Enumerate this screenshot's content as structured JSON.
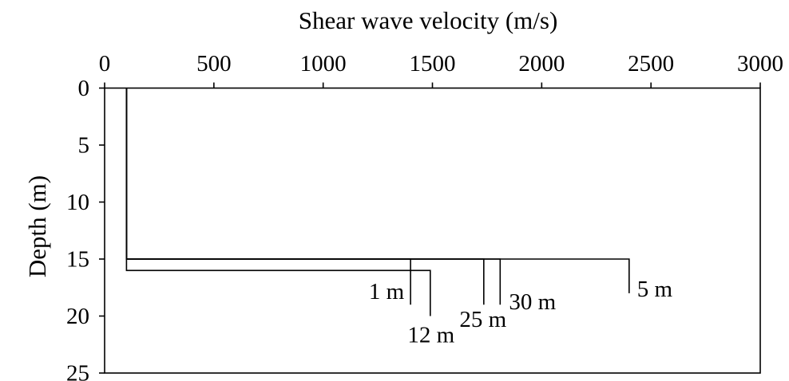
{
  "chart_data": {
    "type": "line",
    "xlabel": "Shear wave velocity (m/s)",
    "ylabel": "Depth (m)",
    "xaxis_position": "top",
    "y_inverted": true,
    "xlim": [
      0,
      3000
    ],
    "ylim": [
      0,
      25
    ],
    "x_ticks": [
      0,
      500,
      1000,
      1500,
      2000,
      2500,
      3000
    ],
    "y_ticks": [
      0,
      5,
      10,
      15,
      20,
      25
    ],
    "grid": false,
    "legend": false,
    "line_color": "#000000",
    "series": [
      {
        "name": "1 m",
        "x": [
          100,
          100,
          1400,
          1400
        ],
        "y": [
          0,
          15,
          15,
          19
        ]
      },
      {
        "name": "5 m",
        "x": [
          100,
          100,
          2400,
          2400
        ],
        "y": [
          0,
          15,
          15,
          18
        ]
      },
      {
        "name": "12 m",
        "x": [
          100,
          100,
          1490,
          1490
        ],
        "y": [
          0,
          16,
          16,
          20
        ]
      },
      {
        "name": "25 m",
        "x": [
          100,
          100,
          1735,
          1735
        ],
        "y": [
          0,
          15,
          15,
          19
        ]
      },
      {
        "name": "30 m",
        "x": [
          100,
          100,
          1810,
          1810
        ],
        "y": [
          0,
          15,
          15,
          19
        ]
      }
    ]
  }
}
